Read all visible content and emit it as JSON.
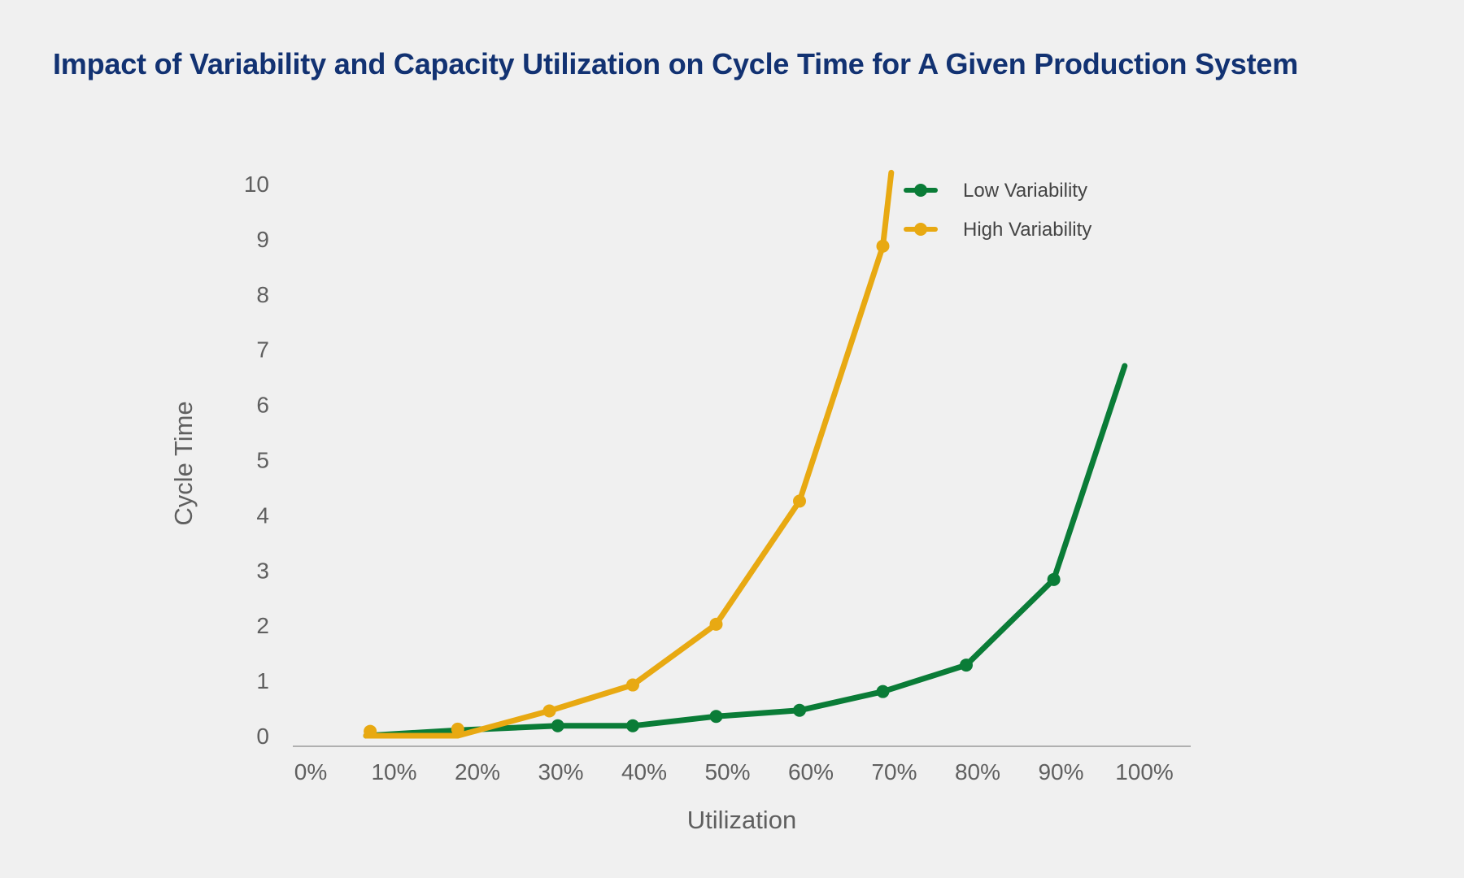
{
  "chart_data": {
    "type": "line",
    "title": "Impact of Variability and Capacity Utilization on Cycle Time for A Given Production System",
    "xlabel": "Utilization",
    "ylabel": "Cycle Time",
    "x_ticks": [
      "0%",
      "10%",
      "20%",
      "30%",
      "40%",
      "50%",
      "60%",
      "70%",
      "80%",
      "90%",
      "100%"
    ],
    "y_ticks": [
      "0",
      "1",
      "2",
      "3",
      "4",
      "5",
      "6",
      "7",
      "8",
      "9",
      "10"
    ],
    "xlim": [
      0,
      100
    ],
    "ylim": [
      0,
      10
    ],
    "grid": false,
    "legend_position": "top-right",
    "series": [
      {
        "name": "Low Variability",
        "color": "#0a7c37",
        "points": [
          {
            "x": 8,
            "y": 0.0,
            "marker": false
          },
          {
            "x": 19,
            "y": 0.1,
            "marker": false
          },
          {
            "x": 31,
            "y": 0.18,
            "marker": true
          },
          {
            "x": 40,
            "y": 0.18,
            "marker": true
          },
          {
            "x": 50,
            "y": 0.35,
            "marker": true
          },
          {
            "x": 60,
            "y": 0.46,
            "marker": true
          },
          {
            "x": 70,
            "y": 0.8,
            "marker": true
          },
          {
            "x": 80,
            "y": 1.28,
            "marker": true
          },
          {
            "x": 90.5,
            "y": 2.83,
            "marker": true
          },
          {
            "x": 99,
            "y": 6.7,
            "marker": false
          }
        ]
      },
      {
        "name": "High Variability",
        "color": "#e8a912",
        "points": [
          {
            "x": 8.5,
            "y": 0.08,
            "marker": true
          },
          {
            "x": 8,
            "y": 0.0,
            "marker": false
          },
          {
            "x": 19,
            "y": 0.0,
            "marker": false
          },
          {
            "x": 19,
            "y": 0.12,
            "marker": true
          },
          {
            "x": 19,
            "y": 0.0,
            "marker": false
          },
          {
            "x": 30,
            "y": 0.45,
            "marker": true
          },
          {
            "x": 40,
            "y": 0.92,
            "marker": true
          },
          {
            "x": 50,
            "y": 2.02,
            "marker": true
          },
          {
            "x": 60,
            "y": 4.25,
            "marker": true
          },
          {
            "x": 70,
            "y": 8.87,
            "marker": true
          },
          {
            "x": 71,
            "y": 10.2,
            "marker": false
          }
        ]
      }
    ]
  }
}
